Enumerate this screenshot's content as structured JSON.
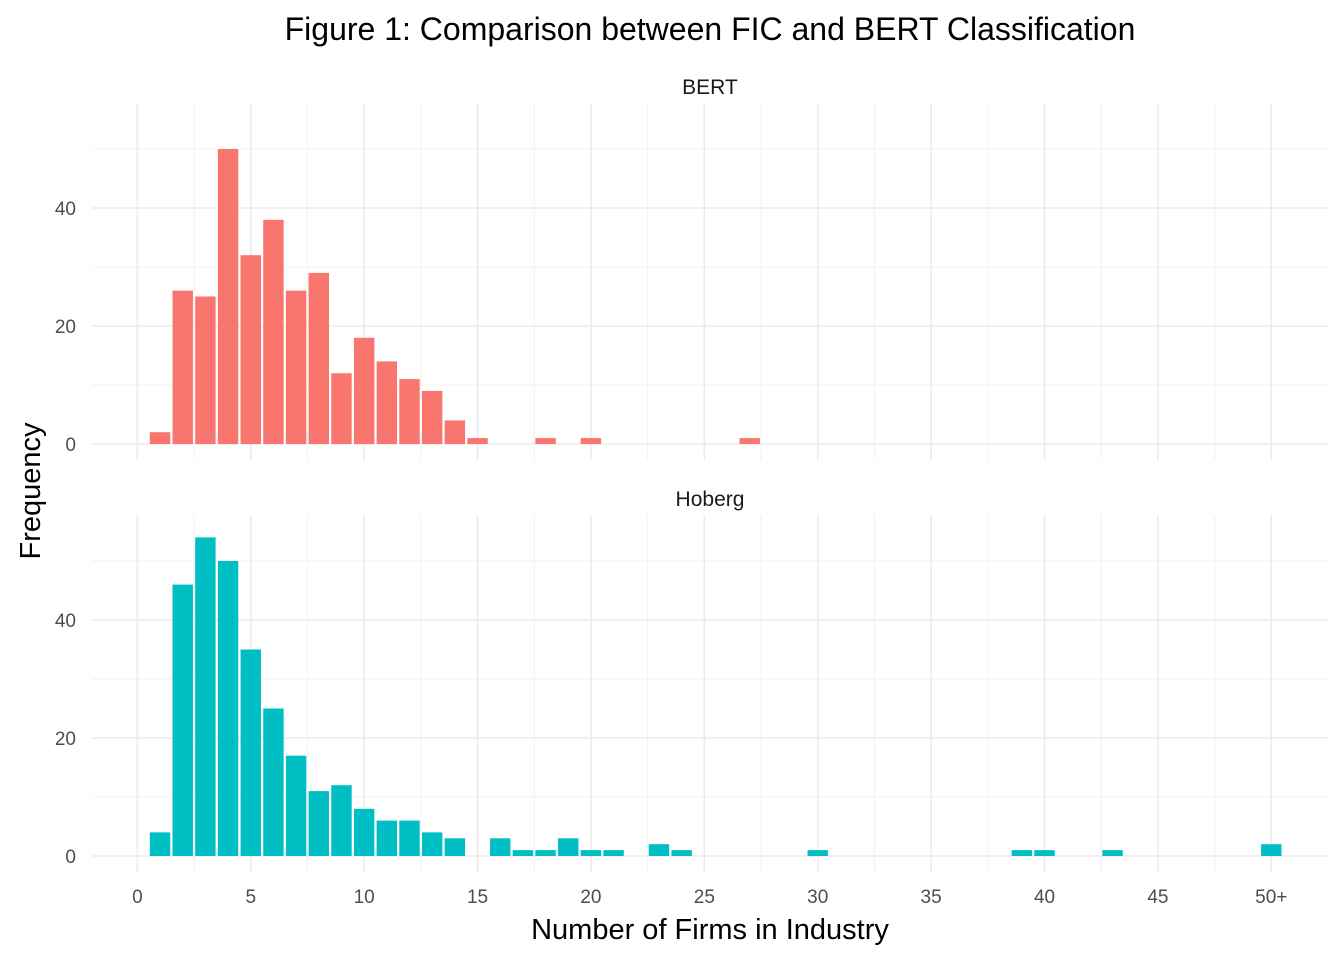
{
  "chart_data": {
    "type": "bar",
    "title": "Figure 1: Comparison between FIC and BERT Classification",
    "xlabel": "Number of Firms in Industry",
    "ylabel": "Frequency",
    "x_ticks": [
      "0",
      "5",
      "10",
      "15",
      "20",
      "25",
      "30",
      "35",
      "40",
      "45",
      "50+"
    ],
    "x_tick_values": [
      0,
      5,
      10,
      15,
      20,
      25,
      30,
      35,
      40,
      45,
      50
    ],
    "xlim": [
      -2,
      52.5
    ],
    "ylim": [
      0,
      56
    ],
    "y_ticks": [
      0,
      20,
      40
    ],
    "grid": true,
    "facets": [
      {
        "name": "BERT",
        "color": "#F8766D",
        "x": [
          1,
          2,
          3,
          4,
          5,
          6,
          7,
          8,
          9,
          10,
          11,
          12,
          13,
          14,
          15,
          18,
          20,
          27
        ],
        "values": [
          2,
          26,
          25,
          50,
          32,
          38,
          26,
          29,
          12,
          18,
          14,
          11,
          9,
          4,
          1,
          1,
          1,
          1
        ]
      },
      {
        "name": "Hoberg",
        "color": "#00BFC4",
        "x": [
          1,
          2,
          3,
          4,
          5,
          6,
          7,
          8,
          9,
          10,
          11,
          12,
          13,
          14,
          16,
          17,
          18,
          19,
          20,
          21,
          23,
          24,
          30,
          39,
          40,
          43,
          50
        ],
        "values": [
          4,
          46,
          54,
          50,
          35,
          25,
          17,
          11,
          12,
          8,
          6,
          6,
          4,
          3,
          3,
          1,
          1,
          3,
          1,
          1,
          2,
          1,
          1,
          1,
          1,
          1,
          2
        ]
      }
    ]
  }
}
